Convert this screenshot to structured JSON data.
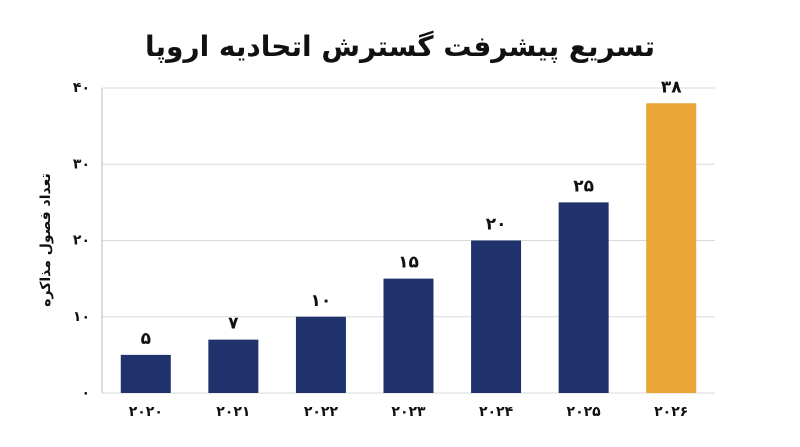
{
  "chart_data": {
    "type": "bar",
    "title": "تسریع پیشرفت گسترش اتحادیه اروپا",
    "y_label": "تعداد فصول مذاکره",
    "categories": [
      "۲۰۲۰",
      "۲۰۲۱",
      "۲۰۲۲",
      "۲۰۲۳",
      "۲۰۲۴",
      "۲۰۲۵",
      "۲۰۲۶"
    ],
    "values": [
      5,
      7,
      10,
      15,
      20,
      25,
      38
    ],
    "value_labels": [
      "۵",
      "۷",
      "۱۰",
      "۱۵",
      "۲۰",
      "۲۵",
      "۳۸"
    ],
    "colors": [
      "#1f326b",
      "#1f326b",
      "#1f326b",
      "#1f326b",
      "#1f326b",
      "#1f326b",
      "#e9a535"
    ],
    "ylim": [
      0,
      40
    ],
    "yticks": [
      {
        "value": 0,
        "label": "۰"
      },
      {
        "value": 10,
        "label": "۱۰"
      },
      {
        "value": 20,
        "label": "۲۰"
      },
      {
        "value": 30,
        "label": "۳۰"
      },
      {
        "value": 40,
        "label": "۴۰"
      }
    ],
    "grid": true
  }
}
